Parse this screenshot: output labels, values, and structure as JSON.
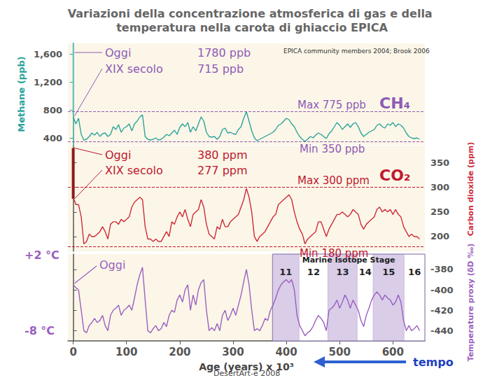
{
  "chart_data": {
    "type": "line",
    "title": "Variazioni della concentrazione atmosferica di gas e della temperatura nella carota di ghiaccio EPICA",
    "source": "EPICA community members 2004; Brook 2006",
    "credit": "DesertArt-e 2008",
    "x_label": "Age (years) x 10³",
    "time_arrow_label": "tempo",
    "xlim": [
      -10,
      660
    ],
    "xticks": [
      0,
      100,
      200,
      300,
      400,
      500,
      600
    ],
    "grid": false,
    "x": [
      0,
      5,
      10,
      15,
      20,
      25,
      30,
      35,
      40,
      45,
      50,
      55,
      60,
      65,
      70,
      75,
      80,
      85,
      90,
      95,
      100,
      105,
      110,
      115,
      120,
      125,
      130,
      135,
      140,
      145,
      150,
      155,
      160,
      165,
      170,
      175,
      180,
      185,
      190,
      195,
      200,
      205,
      210,
      215,
      220,
      225,
      230,
      235,
      240,
      245,
      250,
      255,
      260,
      265,
      270,
      275,
      280,
      285,
      290,
      295,
      300,
      305,
      310,
      315,
      320,
      325,
      330,
      335,
      340,
      345,
      350,
      355,
      360,
      365,
      370,
      375,
      380,
      385,
      390,
      395,
      400,
      405,
      410,
      415,
      420,
      425,
      430,
      435,
      440,
      445,
      450,
      455,
      460,
      465,
      470,
      475,
      480,
      485,
      490,
      495,
      500,
      505,
      510,
      515,
      520,
      525,
      530,
      535,
      540,
      545,
      550,
      555,
      560,
      565,
      570,
      575,
      580,
      585,
      590,
      595,
      600,
      605,
      610,
      615,
      620,
      625,
      630,
      635,
      640,
      645,
      650
    ],
    "panels": [
      {
        "name": "CH₄",
        "y_label": "Methane (ppb)",
        "color": "#2aa39a",
        "ylim": [
          300,
          1750
        ],
        "yticks": [
          400,
          800,
          1200,
          1600
        ],
        "values": [
          700,
          600,
          680,
          450,
          370,
          380,
          420,
          470,
          440,
          480,
          420,
          460,
          470,
          420,
          450,
          560,
          520,
          590,
          480,
          540,
          560,
          600,
          500,
          600,
          640,
          700,
          730,
          420,
          380,
          370,
          380,
          400,
          370,
          380,
          410,
          450,
          430,
          470,
          510,
          450,
          550,
          600,
          560,
          620,
          480,
          560,
          500,
          600,
          700,
          640,
          480,
          420,
          410,
          420,
          380,
          420,
          520,
          540,
          470,
          480,
          460,
          450,
          520,
          560,
          680,
          775,
          640,
          500,
          400,
          360,
          380,
          400,
          420,
          440,
          460,
          480,
          520,
          580,
          600,
          640,
          680,
          660,
          600,
          560,
          480,
          420,
          380,
          350,
          380,
          420,
          400,
          440,
          470,
          450,
          420,
          390,
          460,
          500,
          560,
          620,
          580,
          520,
          560,
          600,
          550,
          600,
          620,
          560,
          470,
          420,
          450,
          480,
          500,
          520,
          580,
          600,
          560,
          540,
          600,
          580,
          620,
          560,
          600,
          580,
          540,
          470,
          420,
          400,
          390,
          400,
          380
        ],
        "today": {
          "label": "Oggi",
          "x": 0,
          "value": 1780,
          "value_label": "1780 ppb"
        },
        "preindustrial": {
          "label": "XIX secolo",
          "x": 0,
          "value": 715,
          "value_label": "715 ppb"
        },
        "max": {
          "value": 775,
          "label": "Max 775 ppb"
        },
        "min": {
          "value": 350,
          "label": "Min 350 ppb"
        }
      },
      {
        "name": "CO₂",
        "axis": "y2",
        "y_label": "Carbon dioxide (ppm)",
        "color": "#d02a3a",
        "ylim": [
          170,
          385
        ],
        "yticks": [
          200,
          250,
          300,
          350
        ],
        "values": [
          280,
          265,
          265,
          240,
          185,
          190,
          205,
          200,
          200,
          205,
          210,
          220,
          210,
          195,
          225,
          230,
          230,
          225,
          235,
          230,
          235,
          240,
          260,
          270,
          275,
          280,
          275,
          220,
          195,
          195,
          190,
          195,
          190,
          190,
          200,
          210,
          200,
          230,
          225,
          240,
          250,
          240,
          255,
          235,
          220,
          245,
          250,
          255,
          275,
          260,
          225,
          205,
          200,
          195,
          220,
          215,
          235,
          220,
          220,
          230,
          235,
          240,
          245,
          260,
          275,
          298,
          280,
          250,
          200,
          190,
          200,
          205,
          210,
          220,
          230,
          240,
          245,
          265,
          270,
          275,
          280,
          285,
          275,
          250,
          230,
          215,
          205,
          185,
          195,
          200,
          205,
          210,
          230,
          230,
          215,
          200,
          215,
          225,
          235,
          245,
          245,
          250,
          245,
          240,
          245,
          255,
          250,
          245,
          225,
          215,
          225,
          230,
          235,
          240,
          255,
          260,
          250,
          255,
          250,
          255,
          245,
          255,
          245,
          240,
          220,
          210,
          200,
          205,
          200,
          200,
          195
        ],
        "today": {
          "label": "Oggi",
          "x": 0,
          "value": 380,
          "value_label": "380 ppm"
        },
        "preindustrial": {
          "label": "XIX secolo",
          "x": 0,
          "value": 277,
          "value_label": "277 ppm"
        },
        "max": {
          "value": 300,
          "label": "Max 300 ppm"
        },
        "min": {
          "value": 180,
          "label": "Min 180 ppm"
        }
      },
      {
        "axis": "y2",
        "y_label": "Temperature proxy (δD ‰)",
        "color": "#9b5fc0",
        "ylim": [
          -450,
          -365
        ],
        "yticks": [
          -440,
          -420,
          -400,
          -380
        ],
        "values": [
          -395,
          -398,
          -400,
          -420,
          -440,
          -442,
          -435,
          -432,
          -428,
          -432,
          -430,
          -425,
          -435,
          -440,
          -425,
          -420,
          -418,
          -415,
          -425,
          -420,
          -418,
          -415,
          -420,
          -408,
          -395,
          -385,
          -378,
          -410,
          -440,
          -442,
          -438,
          -435,
          -440,
          -438,
          -432,
          -436,
          -425,
          -420,
          -422,
          -410,
          -405,
          -412,
          -400,
          -395,
          -420,
          -405,
          -415,
          -400,
          -393,
          -390,
          -420,
          -440,
          -437,
          -440,
          -433,
          -440,
          -425,
          -420,
          -430,
          -425,
          -418,
          -425,
          -415,
          -405,
          -392,
          -380,
          -395,
          -420,
          -440,
          -438,
          -440,
          -435,
          -428,
          -430,
          -420,
          -415,
          -408,
          -400,
          -395,
          -392,
          -390,
          -393,
          -390,
          -400,
          -425,
          -435,
          -440,
          -445,
          -442,
          -440,
          -436,
          -430,
          -425,
          -428,
          -432,
          -440,
          -420,
          -418,
          -415,
          -410,
          -418,
          -412,
          -405,
          -410,
          -418,
          -410,
          -415,
          -420,
          -430,
          -436,
          -425,
          -418,
          -410,
          -405,
          -402,
          -405,
          -410,
          -405,
          -408,
          -410,
          -415,
          -412,
          -405,
          -412,
          -430,
          -440,
          -435,
          -440,
          -438,
          -435,
          -440
        ],
        "today": {
          "label": "Oggi",
          "x": 0
        },
        "scale_labels": [
          {
            "value": -366,
            "label": "+2 °C"
          },
          {
            "value": -440,
            "label": "-8 °C"
          }
        ],
        "stages": {
          "title": "Marine Isotope Stage",
          "bands": [
            {
              "label": "11",
              "from": 374,
              "to": 424,
              "color": "#d9cde8"
            },
            {
              "label": "12",
              "from": 424,
              "to": 478,
              "color": "#ffffff"
            },
            {
              "label": "13",
              "from": 478,
              "to": 533,
              "color": "#d9cde8"
            },
            {
              "label": "14",
              "from": 533,
              "to": 563,
              "color": "#ffffff"
            },
            {
              "label": "15",
              "from": 563,
              "to": 621,
              "color": "#d9cde8"
            },
            {
              "label": "16",
              "from": 621,
              "to": 676,
              "color": "#ffffff"
            }
          ]
        }
      }
    ]
  }
}
